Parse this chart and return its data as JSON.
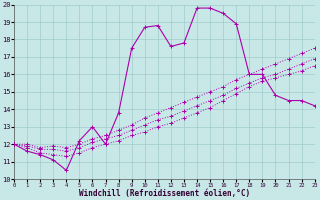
{
  "xlabel": "Windchill (Refroidissement éolien,°C)",
  "xlim": [
    0,
    23
  ],
  "ylim": [
    10,
    20
  ],
  "yticks": [
    10,
    11,
    12,
    13,
    14,
    15,
    16,
    17,
    18,
    19,
    20
  ],
  "xticks": [
    0,
    1,
    2,
    3,
    4,
    5,
    6,
    7,
    8,
    9,
    10,
    11,
    12,
    13,
    14,
    15,
    16,
    17,
    18,
    19,
    20,
    21,
    22,
    23
  ],
  "background_color": "#c8e8e8",
  "grid_color": "#a0cccc",
  "line_color": "#aa00aa",
  "line1_y": [
    12.0,
    11.6,
    11.4,
    11.1,
    10.5,
    12.2,
    13.0,
    12.0,
    13.8,
    17.5,
    18.7,
    18.8,
    17.6,
    17.8,
    19.8,
    19.8,
    19.5,
    18.9,
    16.0,
    16.0,
    14.8,
    14.5,
    14.5,
    14.2
  ],
  "line2_y": [
    12.0,
    11.8,
    11.5,
    11.4,
    11.3,
    11.5,
    11.8,
    12.0,
    12.2,
    12.5,
    12.7,
    13.0,
    13.2,
    13.5,
    13.8,
    14.1,
    14.5,
    14.9,
    15.3,
    15.6,
    15.8,
    16.0,
    16.2,
    16.5
  ],
  "line3_y": [
    12.0,
    11.9,
    11.7,
    11.7,
    11.6,
    11.8,
    12.1,
    12.3,
    12.5,
    12.8,
    13.1,
    13.4,
    13.6,
    13.9,
    14.2,
    14.5,
    14.8,
    15.2,
    15.5,
    15.8,
    16.0,
    16.3,
    16.6,
    16.9
  ],
  "line4_y": [
    12.0,
    12.0,
    11.8,
    11.9,
    11.8,
    12.0,
    12.3,
    12.5,
    12.8,
    13.1,
    13.5,
    13.8,
    14.1,
    14.4,
    14.7,
    15.0,
    15.3,
    15.7,
    16.0,
    16.3,
    16.6,
    16.9,
    17.2,
    17.5
  ]
}
